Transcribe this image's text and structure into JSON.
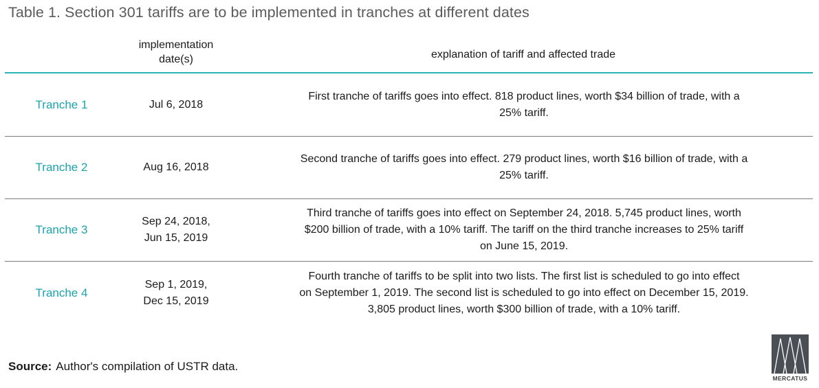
{
  "title": "Table 1. Section 301 tariffs are to be implemented in tranches at different dates",
  "columns": {
    "date_header_line1": "implementation",
    "date_header_line2": "date(s)",
    "explanation_header": "explanation of tariff and affected trade"
  },
  "rows": [
    {
      "name": "Tranche 1",
      "date_line1": "Jul 6, 2018",
      "date_line2": "",
      "explanation_lines": [
        "First tranche of tariffs goes into effect. 818 product lines, worth $34 billion of trade, with a",
        "25% tariff."
      ]
    },
    {
      "name": "Tranche 2",
      "date_line1": "Aug 16, 2018",
      "date_line2": "",
      "explanation_lines": [
        "Second tranche of tariffs goes into effect. 279 product lines, worth $16 billion of trade, with a",
        "25% tariff."
      ]
    },
    {
      "name": "Tranche 3",
      "date_line1": "Sep 24, 2018,",
      "date_line2": "Jun 15, 2019",
      "explanation_lines": [
        "Third tranche of tariffs goes into effect on September 24, 2018. 5,745 product lines, worth",
        "$200 billion of trade, with a 10% tariff. The tariff on the third tranche increases to 25% tariff",
        "on June 15, 2019."
      ]
    },
    {
      "name": "Tranche 4",
      "date_line1": "Sep 1, 2019,",
      "date_line2": "Dec 15, 2019",
      "explanation_lines": [
        "Fourth tranche of tariffs to be split into two lists. The first list is scheduled to go into effect",
        "on September 1, 2019. The second list is scheduled to go into effect on December 15, 2019.",
        "3,805 product lines, worth $300 billion of trade, with a 10% tariff."
      ]
    }
  ],
  "source": {
    "label": "Source:",
    "text": "Author's compilation of USTR data."
  },
  "logo": {
    "text": "MERCATUS",
    "icon": "mercatus-logo-icon"
  },
  "colors": {
    "accent": "#2bb3b8",
    "tranche_label": "#1aa3ad",
    "title": "#5a5a5a",
    "logo_block": "#4a4f55"
  }
}
